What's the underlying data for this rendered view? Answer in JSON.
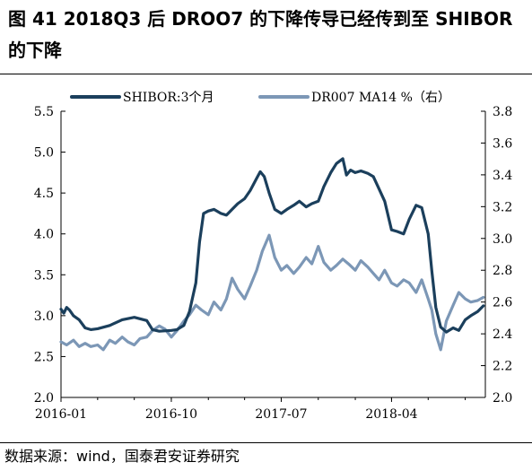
{
  "title": "图 41 2018Q3 后 DROO7 的下降传导已经传到至 SHIBOR 的下降",
  "source": "数据来源：wind，国泰君安证券研究",
  "colors": {
    "shibor": "#1b3f5c",
    "dr007": "#7c97b6",
    "axis": "#000000"
  },
  "chart_data": {
    "type": "line",
    "title": "",
    "xlabel": "",
    "ylabel_left": "",
    "ylabel_right": "",
    "x_tick_labels": [
      "2016-01",
      "2016-10",
      "2017-07",
      "2018-04"
    ],
    "xlim": [
      "2016-01-01",
      "2018-11-20"
    ],
    "y_left": {
      "min": 2.0,
      "max": 5.5,
      "ticks": [
        "2.0",
        "2.5",
        "3.0",
        "3.5",
        "4.0",
        "4.5",
        "5.0",
        "5.5"
      ]
    },
    "y_right": {
      "min": 2.0,
      "max": 3.8,
      "ticks": [
        "2.0",
        "2.2",
        "2.4",
        "2.6",
        "2.8",
        "3.0",
        "3.2",
        "3.4",
        "3.6",
        "3.8"
      ]
    },
    "legend_position": "top",
    "series": [
      {
        "name": "SHIBOR:3个月",
        "axis": "left",
        "points": [
          [
            "2016-01-01",
            3.08
          ],
          [
            "2016-01-08",
            3.03
          ],
          [
            "2016-01-15",
            3.1
          ],
          [
            "2016-01-22",
            3.07
          ],
          [
            "2016-02-01",
            3.0
          ],
          [
            "2016-02-15",
            2.95
          ],
          [
            "2016-03-01",
            2.85
          ],
          [
            "2016-03-15",
            2.83
          ],
          [
            "2016-04-01",
            2.84
          ],
          [
            "2016-05-01",
            2.88
          ],
          [
            "2016-06-01",
            2.95
          ],
          [
            "2016-07-01",
            2.98
          ],
          [
            "2016-08-01",
            2.94
          ],
          [
            "2016-08-15",
            2.83
          ],
          [
            "2016-09-01",
            2.81
          ],
          [
            "2016-10-01",
            2.82
          ],
          [
            "2016-10-15",
            2.83
          ],
          [
            "2016-11-01",
            2.88
          ],
          [
            "2016-11-15",
            3.05
          ],
          [
            "2016-12-01",
            3.4
          ],
          [
            "2016-12-10",
            3.9
          ],
          [
            "2016-12-20",
            4.25
          ],
          [
            "2017-01-01",
            4.28
          ],
          [
            "2017-01-15",
            4.3
          ],
          [
            "2017-02-01",
            4.25
          ],
          [
            "2017-02-15",
            4.23
          ],
          [
            "2017-03-01",
            4.3
          ],
          [
            "2017-03-15",
            4.37
          ],
          [
            "2017-04-01",
            4.43
          ],
          [
            "2017-04-15",
            4.53
          ],
          [
            "2017-05-01",
            4.68
          ],
          [
            "2017-05-10",
            4.76
          ],
          [
            "2017-05-20",
            4.7
          ],
          [
            "2017-06-01",
            4.5
          ],
          [
            "2017-06-15",
            4.3
          ],
          [
            "2017-07-01",
            4.25
          ],
          [
            "2017-07-15",
            4.3
          ],
          [
            "2017-08-01",
            4.35
          ],
          [
            "2017-08-15",
            4.4
          ],
          [
            "2017-09-01",
            4.33
          ],
          [
            "2017-09-15",
            4.37
          ],
          [
            "2017-10-01",
            4.4
          ],
          [
            "2017-10-15",
            4.58
          ],
          [
            "2017-11-01",
            4.75
          ],
          [
            "2017-11-15",
            4.86
          ],
          [
            "2017-12-01",
            4.92
          ],
          [
            "2017-12-10",
            4.72
          ],
          [
            "2017-12-20",
            4.78
          ],
          [
            "2018-01-01",
            4.75
          ],
          [
            "2018-01-15",
            4.77
          ],
          [
            "2018-02-01",
            4.74
          ],
          [
            "2018-02-15",
            4.7
          ],
          [
            "2018-03-01",
            4.55
          ],
          [
            "2018-03-15",
            4.4
          ],
          [
            "2018-04-01",
            4.05
          ],
          [
            "2018-04-15",
            4.03
          ],
          [
            "2018-05-01",
            4.0
          ],
          [
            "2018-05-15",
            4.18
          ],
          [
            "2018-06-01",
            4.35
          ],
          [
            "2018-06-15",
            4.32
          ],
          [
            "2018-07-01",
            4.0
          ],
          [
            "2018-07-10",
            3.55
          ],
          [
            "2018-07-20",
            3.1
          ],
          [
            "2018-08-01",
            2.86
          ],
          [
            "2018-08-15",
            2.8
          ],
          [
            "2018-09-01",
            2.85
          ],
          [
            "2018-09-15",
            2.82
          ],
          [
            "2018-10-01",
            2.95
          ],
          [
            "2018-10-15",
            3.0
          ],
          [
            "2018-11-01",
            3.05
          ],
          [
            "2018-11-15",
            3.12
          ]
        ]
      },
      {
        "name": "DR007 MA14 %（右）",
        "axis": "right",
        "points": [
          [
            "2016-01-01",
            2.35
          ],
          [
            "2016-01-15",
            2.33
          ],
          [
            "2016-02-01",
            2.36
          ],
          [
            "2016-02-15",
            2.32
          ],
          [
            "2016-03-01",
            2.34
          ],
          [
            "2016-03-15",
            2.32
          ],
          [
            "2016-04-01",
            2.33
          ],
          [
            "2016-04-15",
            2.3
          ],
          [
            "2016-05-01",
            2.36
          ],
          [
            "2016-05-15",
            2.34
          ],
          [
            "2016-06-01",
            2.38
          ],
          [
            "2016-06-15",
            2.35
          ],
          [
            "2016-07-01",
            2.33
          ],
          [
            "2016-07-15",
            2.37
          ],
          [
            "2016-08-01",
            2.38
          ],
          [
            "2016-08-15",
            2.42
          ],
          [
            "2016-09-01",
            2.45
          ],
          [
            "2016-09-15",
            2.43
          ],
          [
            "2016-10-01",
            2.38
          ],
          [
            "2016-10-15",
            2.42
          ],
          [
            "2016-11-01",
            2.48
          ],
          [
            "2016-11-15",
            2.52
          ],
          [
            "2016-12-01",
            2.58
          ],
          [
            "2016-12-15",
            2.55
          ],
          [
            "2017-01-01",
            2.52
          ],
          [
            "2017-01-15",
            2.6
          ],
          [
            "2017-02-01",
            2.55
          ],
          [
            "2017-02-15",
            2.62
          ],
          [
            "2017-03-01",
            2.75
          ],
          [
            "2017-03-15",
            2.68
          ],
          [
            "2017-04-01",
            2.62
          ],
          [
            "2017-04-15",
            2.7
          ],
          [
            "2017-05-01",
            2.8
          ],
          [
            "2017-05-15",
            2.92
          ],
          [
            "2017-06-01",
            3.02
          ],
          [
            "2017-06-15",
            2.88
          ],
          [
            "2017-07-01",
            2.8
          ],
          [
            "2017-07-15",
            2.83
          ],
          [
            "2017-08-01",
            2.78
          ],
          [
            "2017-08-15",
            2.82
          ],
          [
            "2017-09-01",
            2.88
          ],
          [
            "2017-09-15",
            2.84
          ],
          [
            "2017-10-01",
            2.95
          ],
          [
            "2017-10-15",
            2.85
          ],
          [
            "2017-11-01",
            2.8
          ],
          [
            "2017-11-15",
            2.83
          ],
          [
            "2017-12-01",
            2.87
          ],
          [
            "2017-12-15",
            2.84
          ],
          [
            "2018-01-01",
            2.8
          ],
          [
            "2018-01-15",
            2.86
          ],
          [
            "2018-02-01",
            2.82
          ],
          [
            "2018-02-15",
            2.78
          ],
          [
            "2018-03-01",
            2.74
          ],
          [
            "2018-03-15",
            2.8
          ],
          [
            "2018-04-01",
            2.72
          ],
          [
            "2018-04-15",
            2.7
          ],
          [
            "2018-05-01",
            2.74
          ],
          [
            "2018-05-15",
            2.72
          ],
          [
            "2018-06-01",
            2.66
          ],
          [
            "2018-06-15",
            2.74
          ],
          [
            "2018-07-01",
            2.62
          ],
          [
            "2018-07-10",
            2.55
          ],
          [
            "2018-07-20",
            2.4
          ],
          [
            "2018-08-01",
            2.3
          ],
          [
            "2018-08-15",
            2.48
          ],
          [
            "2018-09-01",
            2.58
          ],
          [
            "2018-09-15",
            2.66
          ],
          [
            "2018-10-01",
            2.62
          ],
          [
            "2018-10-15",
            2.6
          ],
          [
            "2018-11-01",
            2.61
          ],
          [
            "2018-11-15",
            2.63
          ]
        ]
      }
    ]
  }
}
